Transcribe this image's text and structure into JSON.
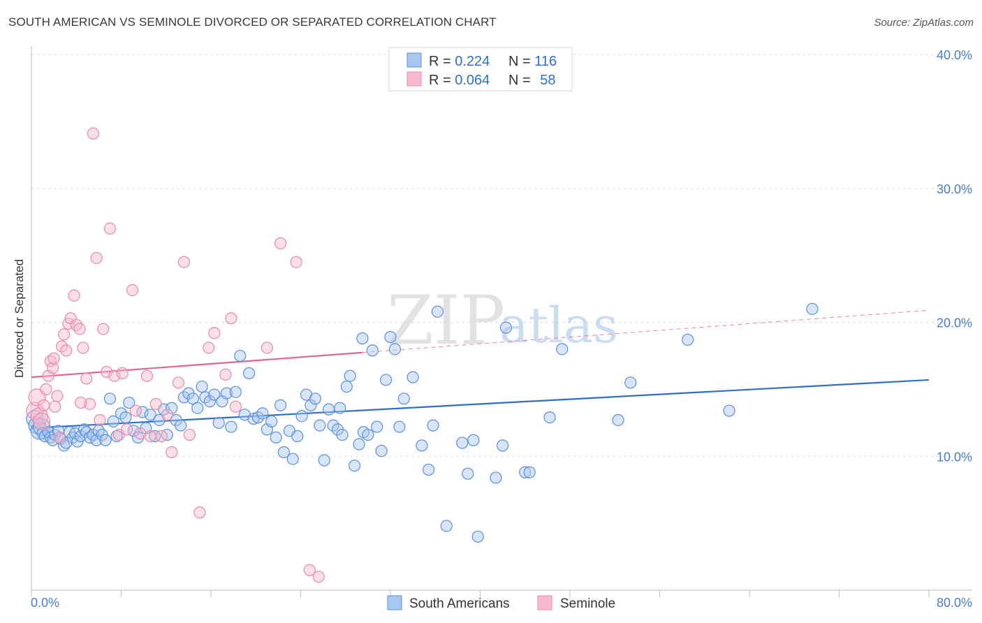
{
  "title": "SOUTH AMERICAN VS SEMINOLE DIVORCED OR SEPARATED CORRELATION CHART",
  "source": "Source: ZipAtlas.com",
  "watermark": {
    "zip": "ZIP",
    "atlas": "atlas"
  },
  "colors": {
    "blue_fill": "#a9c6f0",
    "blue_stroke": "#5b8fd9",
    "blue_line": "#2f6fcc",
    "pink_fill": "#f6b9cd",
    "pink_stroke": "#e58aa8",
    "pink_line": "#e06592",
    "tick_text": "#4a7ecb",
    "grid": "#dddddd"
  },
  "legend": {
    "rows": [
      {
        "r_label": "R = ",
        "r_value": "0.224",
        "n_label": "N = ",
        "n_value": "116",
        "color": "blue"
      },
      {
        "r_label": "R = ",
        "r_value": "0.064",
        "n_label": "N = ",
        "n_value": "58",
        "color": "pink"
      }
    ]
  },
  "bottom_legend": [
    "South Americans",
    "Seminole"
  ],
  "chart_data": {
    "type": "scatter",
    "xlabel": "",
    "ylabel": "Divorced or Separated",
    "xlim": [
      0,
      80
    ],
    "ylim": [
      0,
      40
    ],
    "x_tick_labels": [
      "0.0%",
      "80.0%"
    ],
    "y_ticks": [
      10,
      20,
      30,
      40
    ],
    "y_tick_labels": [
      "10.0%",
      "20.0%",
      "30.0%",
      "40.0%"
    ],
    "grid": true,
    "series": [
      {
        "name": "South Americans",
        "color": "blue",
        "trend": {
          "x": [
            0,
            80
          ],
          "y": [
            12.1,
            15.7
          ],
          "solid_until": 80
        },
        "points": [
          [
            0.3,
            12.8
          ],
          [
            0.5,
            12.3
          ],
          [
            0.7,
            11.9
          ],
          [
            0.9,
            12.2
          ],
          [
            1.0,
            11.7
          ],
          [
            1.2,
            11.5
          ],
          [
            1.5,
            11.8
          ],
          [
            1.7,
            11.4
          ],
          [
            1.9,
            11.2
          ],
          [
            2.1,
            11.6
          ],
          [
            2.4,
            11.9
          ],
          [
            2.6,
            11.3
          ],
          [
            2.9,
            10.8
          ],
          [
            3.1,
            11.0
          ],
          [
            3.4,
            11.8
          ],
          [
            3.7,
            11.4
          ],
          [
            3.9,
            11.7
          ],
          [
            4.1,
            11.1
          ],
          [
            4.4,
            11.5
          ],
          [
            4.7,
            12.0
          ],
          [
            4.9,
            11.8
          ],
          [
            5.2,
            11.4
          ],
          [
            5.5,
            11.6
          ],
          [
            5.8,
            11.2
          ],
          [
            6.0,
            11.9
          ],
          [
            6.3,
            11.6
          ],
          [
            6.6,
            11.2
          ],
          [
            7.0,
            14.3
          ],
          [
            7.3,
            12.6
          ],
          [
            7.6,
            11.5
          ],
          [
            8.0,
            13.2
          ],
          [
            8.4,
            12.9
          ],
          [
            8.7,
            14.0
          ],
          [
            9.1,
            11.9
          ],
          [
            9.5,
            11.4
          ],
          [
            9.9,
            13.3
          ],
          [
            10.2,
            12.1
          ],
          [
            10.6,
            13.1
          ],
          [
            11.0,
            11.5
          ],
          [
            11.4,
            12.7
          ],
          [
            11.8,
            13.5
          ],
          [
            12.1,
            11.6
          ],
          [
            12.5,
            13.6
          ],
          [
            12.9,
            12.7
          ],
          [
            13.3,
            12.3
          ],
          [
            13.6,
            14.4
          ],
          [
            14.0,
            14.7
          ],
          [
            14.4,
            14.3
          ],
          [
            14.8,
            13.6
          ],
          [
            15.2,
            15.2
          ],
          [
            15.5,
            14.4
          ],
          [
            15.9,
            14.1
          ],
          [
            16.3,
            14.6
          ],
          [
            16.7,
            12.5
          ],
          [
            17.0,
            14.1
          ],
          [
            17.4,
            14.7
          ],
          [
            17.8,
            12.2
          ],
          [
            18.2,
            14.8
          ],
          [
            18.6,
            17.5
          ],
          [
            19.0,
            13.1
          ],
          [
            19.4,
            16.2
          ],
          [
            19.8,
            12.8
          ],
          [
            20.2,
            12.9
          ],
          [
            20.6,
            13.2
          ],
          [
            21.0,
            12.0
          ],
          [
            21.4,
            12.6
          ],
          [
            21.8,
            11.4
          ],
          [
            22.2,
            13.8
          ],
          [
            22.5,
            10.3
          ],
          [
            23.0,
            11.9
          ],
          [
            23.3,
            9.8
          ],
          [
            23.7,
            11.5
          ],
          [
            24.1,
            13.0
          ],
          [
            24.5,
            14.6
          ],
          [
            24.9,
            13.8
          ],
          [
            25.3,
            14.3
          ],
          [
            25.7,
            12.3
          ],
          [
            26.1,
            9.7
          ],
          [
            26.5,
            13.5
          ],
          [
            26.9,
            12.3
          ],
          [
            27.3,
            12.0
          ],
          [
            27.7,
            11.6
          ],
          [
            28.1,
            15.2
          ],
          [
            28.4,
            16.0
          ],
          [
            28.8,
            9.3
          ],
          [
            29.2,
            10.9
          ],
          [
            29.6,
            11.8
          ],
          [
            30.0,
            11.6
          ],
          [
            30.4,
            17.9
          ],
          [
            30.8,
            12.2
          ],
          [
            31.2,
            10.4
          ],
          [
            31.6,
            15.7
          ],
          [
            32.0,
            18.9
          ],
          [
            32.4,
            18.0
          ],
          [
            32.8,
            12.2
          ],
          [
            33.2,
            14.3
          ],
          [
            34.0,
            15.9
          ],
          [
            34.8,
            10.8
          ],
          [
            35.4,
            9.0
          ],
          [
            35.8,
            12.3
          ],
          [
            37.0,
            4.8
          ],
          [
            38.4,
            11.0
          ],
          [
            38.9,
            8.7
          ],
          [
            39.4,
            11.2
          ],
          [
            39.8,
            4.0
          ],
          [
            41.4,
            8.4
          ],
          [
            42.3,
            19.6
          ],
          [
            42.0,
            10.8
          ],
          [
            44.0,
            8.8
          ],
          [
            44.4,
            8.8
          ],
          [
            46.2,
            12.9
          ],
          [
            47.3,
            18.0
          ],
          [
            52.3,
            12.7
          ],
          [
            53.4,
            15.5
          ],
          [
            58.5,
            18.7
          ],
          [
            62.2,
            13.4
          ],
          [
            69.6,
            21.0
          ],
          [
            36.2,
            20.8
          ],
          [
            29.5,
            18.8
          ],
          [
            27.5,
            13.6
          ]
        ]
      },
      {
        "name": "Seminole",
        "color": "pink",
        "trend": {
          "x": [
            0,
            80
          ],
          "y": [
            15.9,
            20.9
          ],
          "solid_until": 29.5
        },
        "points": [
          [
            0.3,
            13.4
          ],
          [
            0.5,
            14.4
          ],
          [
            0.7,
            13.0
          ],
          [
            0.9,
            12.6
          ],
          [
            1.1,
            13.8
          ],
          [
            1.3,
            15.0
          ],
          [
            1.5,
            16.0
          ],
          [
            1.7,
            17.1
          ],
          [
            1.9,
            16.6
          ],
          [
            2.1,
            13.7
          ],
          [
            2.3,
            14.5
          ],
          [
            2.5,
            11.4
          ],
          [
            2.7,
            18.2
          ],
          [
            2.9,
            19.1
          ],
          [
            3.1,
            17.9
          ],
          [
            3.3,
            19.9
          ],
          [
            3.5,
            20.3
          ],
          [
            3.8,
            22.0
          ],
          [
            4.0,
            19.8
          ],
          [
            4.3,
            19.5
          ],
          [
            4.6,
            18.1
          ],
          [
            4.9,
            15.8
          ],
          [
            5.2,
            13.9
          ],
          [
            5.5,
            34.1
          ],
          [
            5.8,
            24.8
          ],
          [
            6.1,
            12.7
          ],
          [
            6.4,
            19.5
          ],
          [
            6.7,
            16.3
          ],
          [
            7.0,
            27.0
          ],
          [
            7.4,
            16.0
          ],
          [
            7.8,
            11.6
          ],
          [
            8.1,
            16.2
          ],
          [
            8.5,
            12.0
          ],
          [
            9.0,
            22.4
          ],
          [
            9.3,
            13.4
          ],
          [
            9.7,
            11.7
          ],
          [
            10.3,
            16.0
          ],
          [
            10.6,
            11.5
          ],
          [
            11.1,
            13.9
          ],
          [
            11.6,
            11.5
          ],
          [
            12.1,
            13.1
          ],
          [
            12.5,
            10.3
          ],
          [
            13.1,
            15.5
          ],
          [
            13.6,
            24.5
          ],
          [
            14.1,
            11.6
          ],
          [
            15.0,
            5.8
          ],
          [
            15.8,
            18.1
          ],
          [
            16.3,
            19.2
          ],
          [
            17.3,
            16.1
          ],
          [
            17.8,
            20.3
          ],
          [
            18.2,
            13.7
          ],
          [
            21.0,
            18.1
          ],
          [
            22.2,
            25.9
          ],
          [
            23.6,
            24.5
          ],
          [
            24.8,
            1.5
          ],
          [
            25.6,
            1.0
          ],
          [
            4.4,
            14.0
          ],
          [
            2.0,
            17.3
          ]
        ]
      }
    ]
  }
}
